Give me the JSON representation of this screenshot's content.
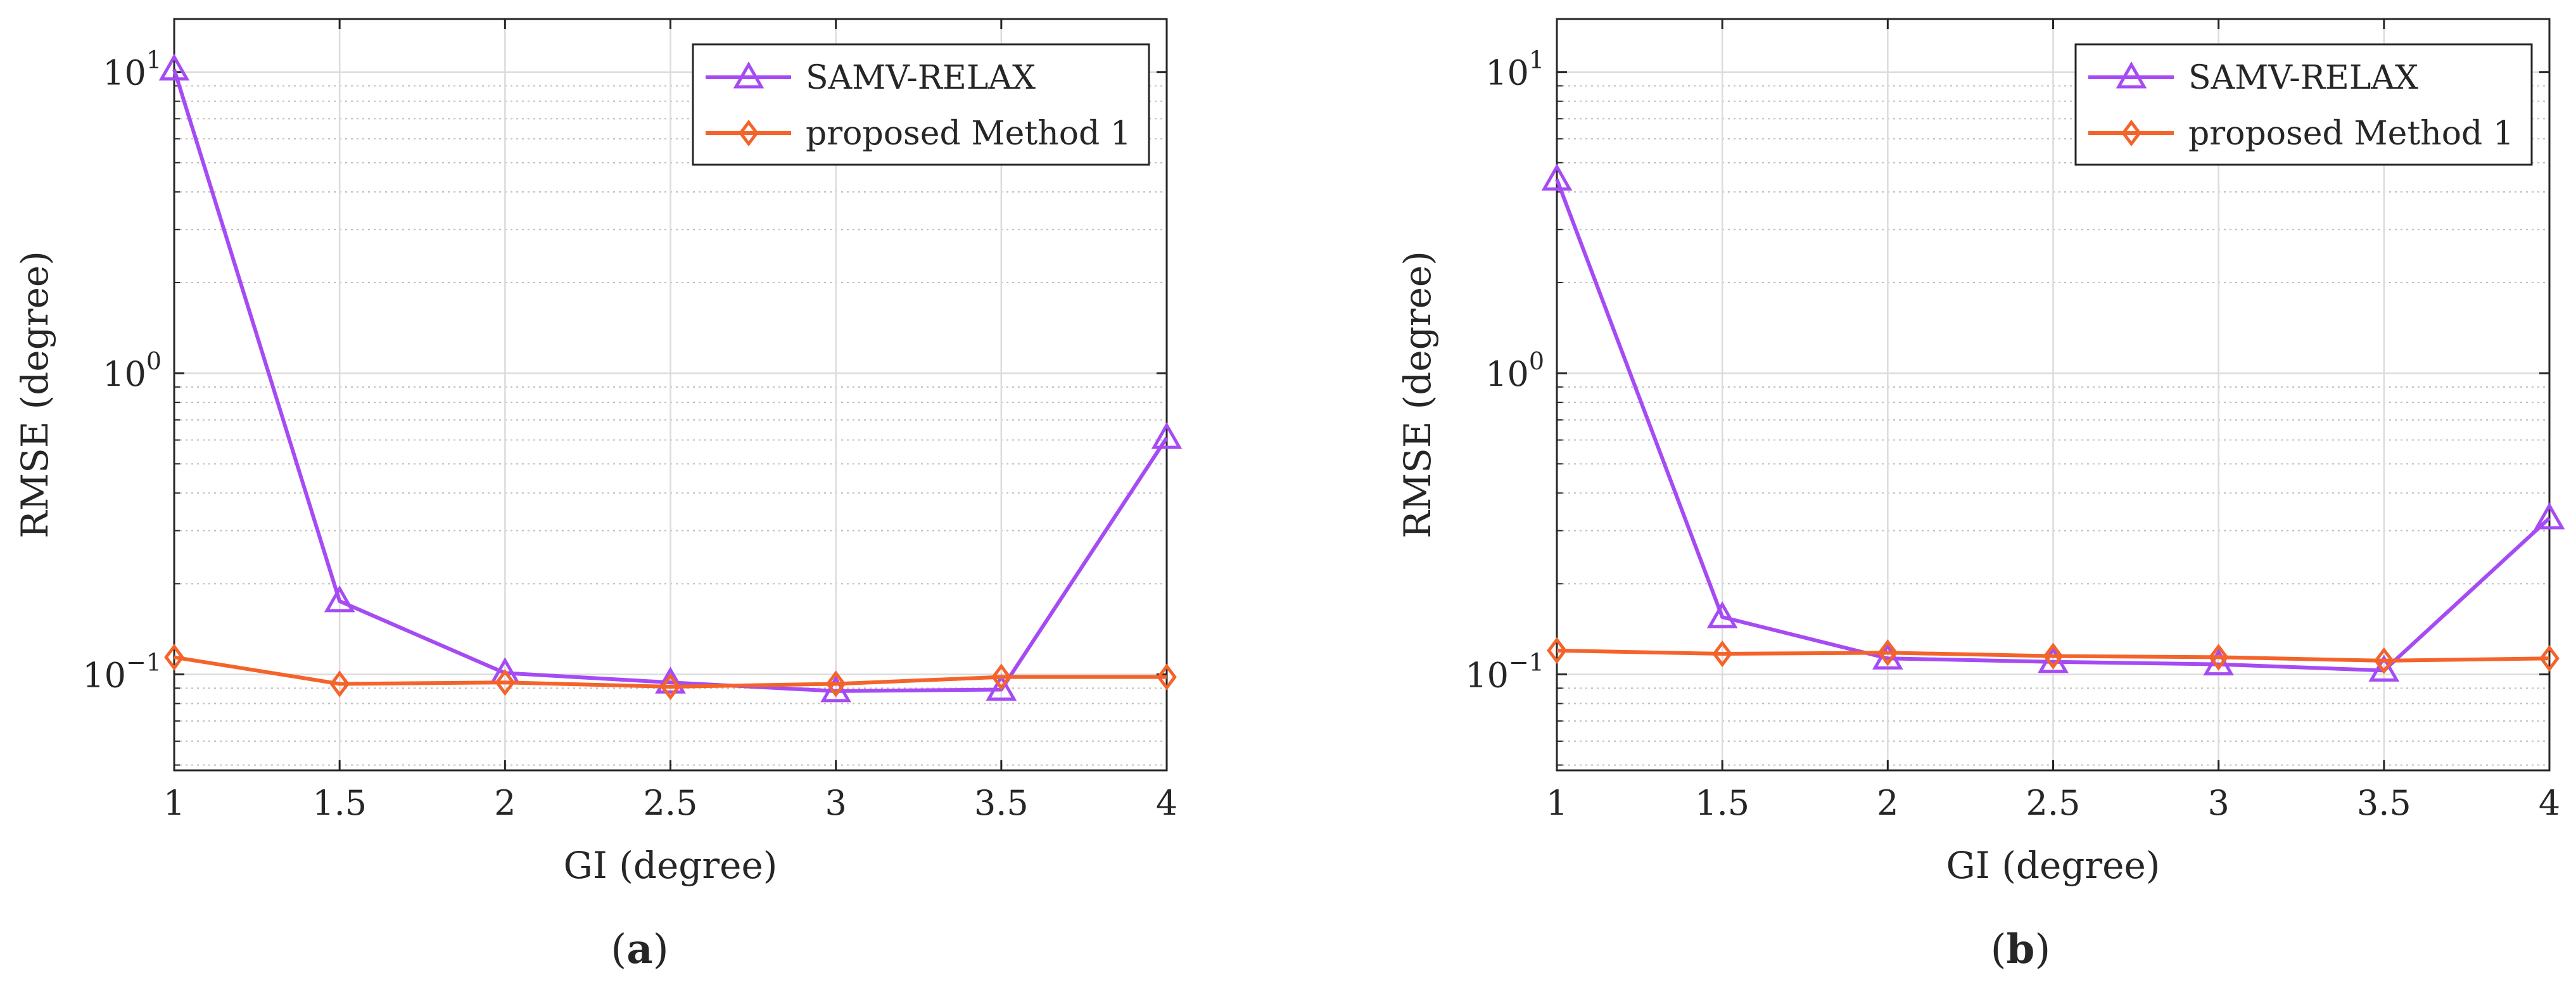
{
  "chart_data": [
    {
      "type": "line",
      "title": "",
      "caption": {
        "open": "(",
        "letter": "a",
        "close": ")"
      },
      "xlabel": "GI (degree)",
      "ylabel": "RMSE (degree)",
      "yscale": "log",
      "xlim": [
        1,
        4
      ],
      "ylim": [
        0.048,
        15
      ],
      "x": [
        1,
        1.5,
        2,
        2.5,
        3,
        3.5,
        4
      ],
      "xticks": [
        "1",
        "1.5",
        "2",
        "2.5",
        "3",
        "3.5",
        "4"
      ],
      "yticks": [
        {
          "value": 0.1,
          "base": "10",
          "exp": "−1"
        },
        {
          "value": 1,
          "base": "10",
          "exp": "0"
        },
        {
          "value": 10,
          "base": "10",
          "exp": "1"
        }
      ],
      "grid": true,
      "legend_position": "top-right",
      "series": [
        {
          "name": "SAMV-RELAX",
          "marker": "triangle",
          "color": "#a64bf4",
          "values": [
            10.2,
            0.175,
            0.101,
            0.094,
            0.088,
            0.089,
            0.61
          ]
        },
        {
          "name": "proposed Method 1",
          "marker": "diamond",
          "color": "#f4642a",
          "values": [
            0.114,
            0.093,
            0.094,
            0.091,
            0.093,
            0.098,
            0.098
          ]
        }
      ]
    },
    {
      "type": "line",
      "title": "",
      "caption": {
        "open": "(",
        "letter": "b",
        "close": ")"
      },
      "xlabel": "GI (degree)",
      "ylabel": "RMSE (degree)",
      "yscale": "log",
      "xlim": [
        1,
        4
      ],
      "ylim": [
        0.048,
        15
      ],
      "x": [
        1,
        1.5,
        2,
        2.5,
        3,
        3.5,
        4
      ],
      "xticks": [
        "1",
        "1.5",
        "2",
        "2.5",
        "3",
        "3.5",
        "4"
      ],
      "yticks": [
        {
          "value": 0.1,
          "base": "10",
          "exp": "−1"
        },
        {
          "value": 1,
          "base": "10",
          "exp": "0"
        },
        {
          "value": 10,
          "base": "10",
          "exp": "1"
        }
      ],
      "grid": true,
      "legend_position": "top-right",
      "series": [
        {
          "name": "SAMV-RELAX",
          "marker": "triangle",
          "color": "#a64bf4",
          "values": [
            4.4,
            0.155,
            0.113,
            0.11,
            0.108,
            0.103,
            0.33
          ]
        },
        {
          "name": "proposed Method 1",
          "marker": "diamond",
          "color": "#f4642a",
          "values": [
            0.12,
            0.117,
            0.118,
            0.115,
            0.114,
            0.111,
            0.113
          ]
        }
      ]
    }
  ]
}
